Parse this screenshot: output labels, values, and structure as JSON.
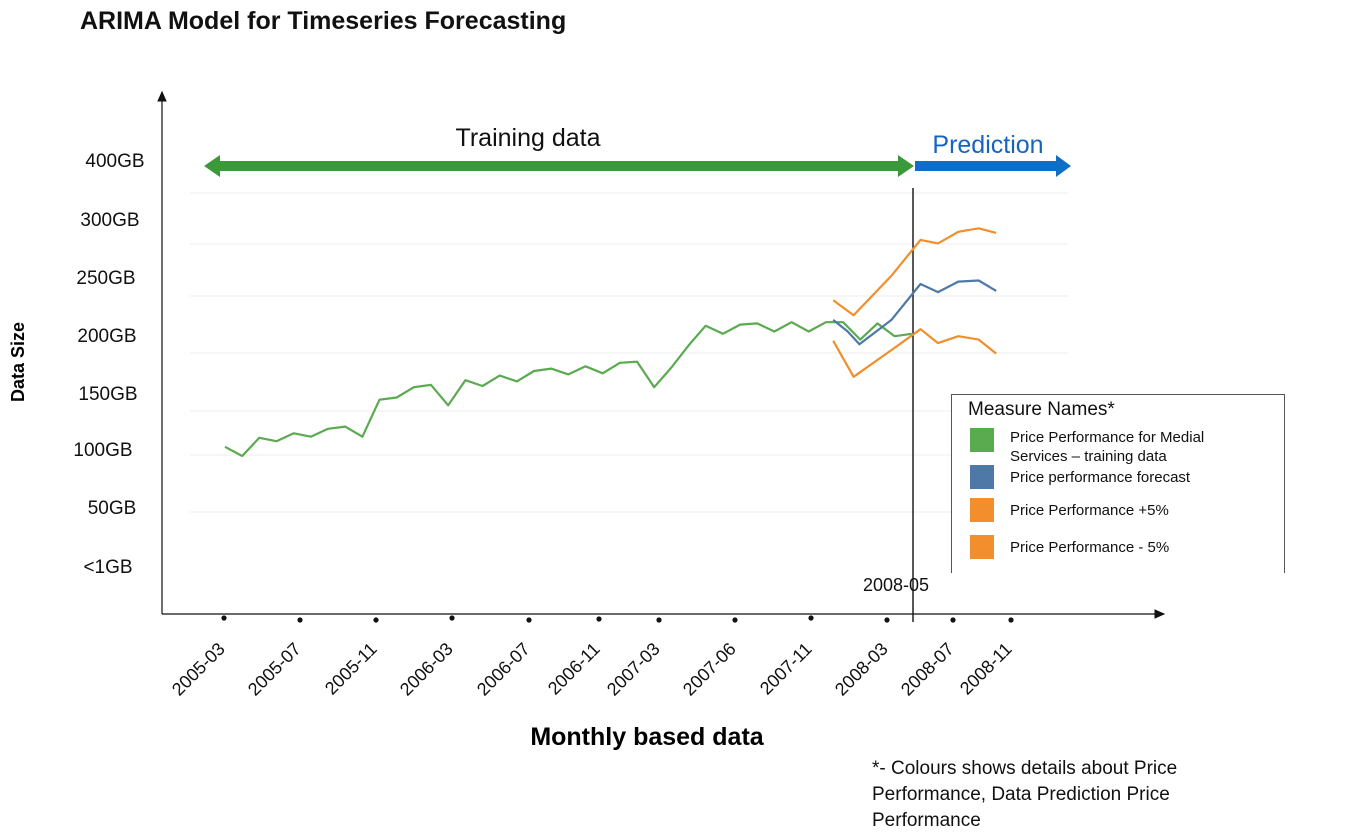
{
  "title": "ARIMA Model for Timeseries Forecasting",
  "annotations": {
    "training": "Training data",
    "prediction": "Prediction",
    "split_date": "2008-05",
    "footnote": "*- Colours shows details about Price Performance, Data Prediction Price Performance"
  },
  "colors": {
    "training": "#5aaa50",
    "forecast": "#4e79a7",
    "band": "#f28e2b",
    "training_arrow": "#3a9a3a",
    "prediction_arrow": "#0f6fc6",
    "prediction_text": "#1565c0"
  },
  "legend": {
    "title": "Measure Names*",
    "items": [
      {
        "label": "Price Performance for Medial Services – training data",
        "color": "#5aaa50"
      },
      {
        "label": "Price performance forecast",
        "color": "#4e79a7"
      },
      {
        "label": "Price Performance +5%",
        "color": "#f28e2b"
      },
      {
        "label": "Price Performance - 5%",
        "color": "#f28e2b"
      }
    ]
  },
  "chart_data": {
    "type": "line",
    "title": "ARIMA Model for Timeseries Forecasting",
    "xlabel": "Monthly based data",
    "ylabel": "Data Size",
    "x_ticks": [
      "2005-03",
      "2005-07",
      "2005-11",
      "2006-03",
      "2006-07",
      "2006-11",
      "2007-03",
      "2007-06",
      "2007-11",
      "2008-03",
      "2008-07",
      "2008-11"
    ],
    "y_ticks": [
      "<1GB",
      "50GB",
      "100GB",
      "150GB",
      "200GB",
      "250GB",
      "300GB",
      "400GB"
    ],
    "grid": true,
    "legend_position": "right",
    "series": [
      {
        "name": "Price Performance for Medial Services – training data",
        "points": [
          [
            0,
            102
          ],
          [
            0.59,
            94
          ],
          [
            1.18,
            110
          ],
          [
            1.77,
            107
          ],
          [
            2.36,
            114
          ],
          [
            2.95,
            111
          ],
          [
            3.54,
            118
          ],
          [
            4.13,
            120
          ],
          [
            4.72,
            111
          ],
          [
            5.31,
            144
          ],
          [
            5.9,
            146
          ],
          [
            6.49,
            155
          ],
          [
            7.08,
            157
          ],
          [
            7.67,
            139
          ],
          [
            8.26,
            161
          ],
          [
            8.85,
            156
          ],
          [
            9.44,
            165
          ],
          [
            10.03,
            160
          ],
          [
            10.62,
            169
          ],
          [
            11.21,
            171
          ],
          [
            11.8,
            166
          ],
          [
            12.39,
            173
          ],
          [
            12.98,
            167
          ],
          [
            13.57,
            176
          ],
          [
            14.16,
            177
          ],
          [
            14.75,
            155
          ],
          [
            15.34,
            172
          ],
          [
            15.93,
            191
          ],
          [
            16.52,
            208
          ],
          [
            17.11,
            201
          ],
          [
            17.7,
            209
          ],
          [
            18.29,
            210
          ],
          [
            18.88,
            203
          ],
          [
            19.47,
            211
          ],
          [
            20.06,
            203
          ],
          [
            20.65,
            211
          ],
          [
            21.24,
            211
          ],
          [
            21.83,
            196
          ],
          [
            22.42,
            210
          ],
          [
            23.01,
            199
          ],
          [
            23.6,
            201
          ]
        ]
      },
      {
        "name": "Price performance forecast",
        "points": [
          [
            20.9,
            213
          ],
          [
            21.4,
            203
          ],
          [
            21.8,
            192
          ],
          [
            22.9,
            213
          ],
          [
            23.9,
            244
          ],
          [
            24.5,
            237
          ],
          [
            25.2,
            246
          ],
          [
            25.9,
            247
          ],
          [
            26.5,
            238
          ]
        ]
      },
      {
        "name": "Price Performance +5%",
        "points": [
          [
            20.9,
            230
          ],
          [
            21.6,
            217
          ],
          [
            22.9,
            251
          ],
          [
            23.9,
            282
          ],
          [
            24.5,
            279
          ],
          [
            25.2,
            289
          ],
          [
            25.9,
            292
          ],
          [
            26.5,
            288
          ]
        ]
      },
      {
        "name": "Price Performance - 5%",
        "points": [
          [
            20.9,
            195
          ],
          [
            21.6,
            164
          ],
          [
            22.9,
            187
          ],
          [
            23.9,
            205
          ],
          [
            24.5,
            193
          ],
          [
            25.2,
            199
          ],
          [
            25.9,
            196
          ],
          [
            26.5,
            184
          ]
        ]
      }
    ]
  }
}
